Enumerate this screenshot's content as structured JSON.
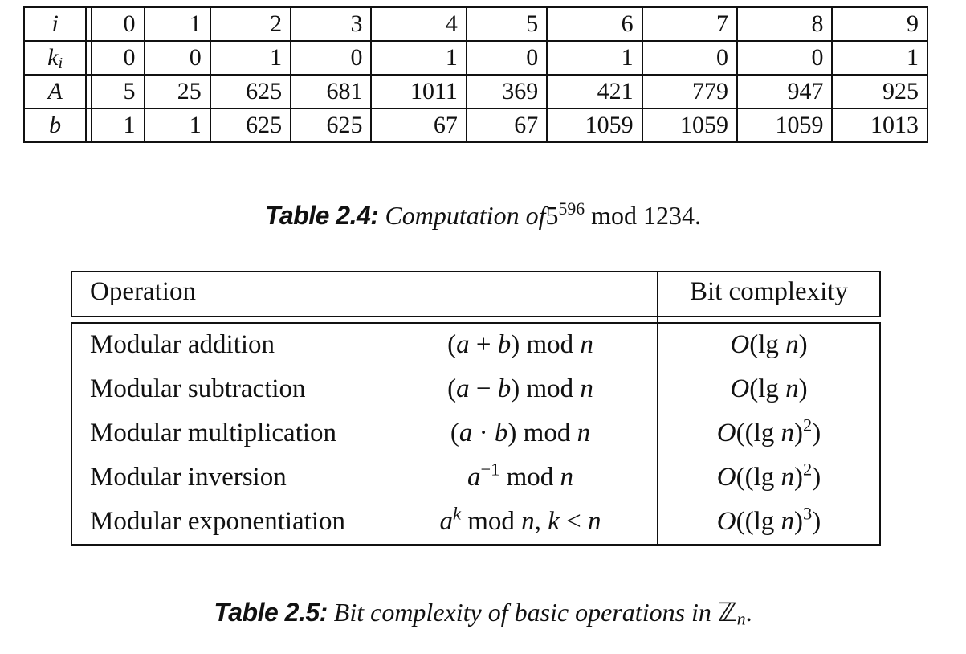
{
  "table_2_4": {
    "rows": [
      {
        "label": "i",
        "label_sub": "",
        "cells": [
          "0",
          "1",
          "2",
          "3",
          "4",
          "5",
          "6",
          "7",
          "8",
          "9"
        ]
      },
      {
        "label": "k",
        "label_sub": "i",
        "cells": [
          "0",
          "0",
          "1",
          "0",
          "1",
          "0",
          "1",
          "0",
          "0",
          "1"
        ]
      },
      {
        "label": "A",
        "label_sub": "",
        "cells": [
          "5",
          "25",
          "625",
          "681",
          "1011",
          "369",
          "421",
          "779",
          "947",
          "925"
        ]
      },
      {
        "label": "b",
        "label_sub": "",
        "cells": [
          "1",
          "1",
          "625",
          "625",
          "67",
          "67",
          "1059",
          "1059",
          "1059",
          "1013"
        ]
      }
    ],
    "caption": {
      "head": "Table 2.4:",
      "text": "Computation of",
      "base": "5",
      "exponent": "596",
      "mod": "mod",
      "modulus": "1234."
    }
  },
  "table_2_5": {
    "headers": {
      "operation": "Operation",
      "complexity": "Bit complexity"
    },
    "rows": [
      {
        "name": "Modular addition"
      },
      {
        "name": "Modular subtraction"
      },
      {
        "name": "Modular multiplication"
      },
      {
        "name": "Modular inversion"
      },
      {
        "name": "Modular exponentiation"
      }
    ],
    "caption": {
      "head": "Table 2.5:",
      "text": "Bit complexity of basic operations in",
      "set": "ℤ",
      "set_sub": "n",
      "end": "."
    }
  }
}
